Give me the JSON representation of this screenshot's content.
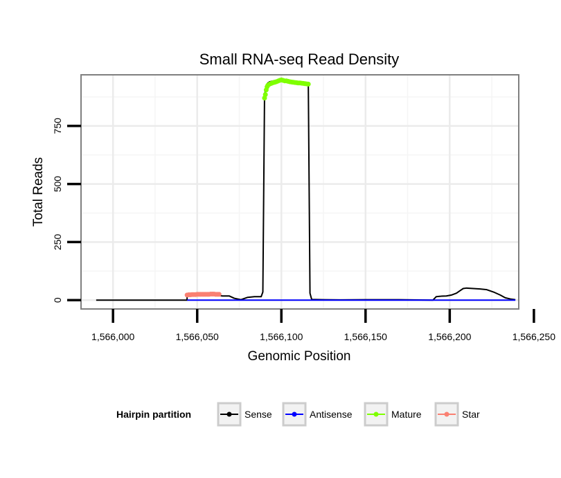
{
  "chart_data": {
    "type": "line",
    "title": "Small RNA-seq Read Density",
    "xlabel": "Genomic Position",
    "ylabel": "Total Reads",
    "xlim": [
      1565981,
      1566241
    ],
    "ylim": [
      -38,
      970
    ],
    "x_ticks": [
      1566000,
      1566050,
      1566100,
      1566150,
      1566200,
      1566250
    ],
    "x_tick_labels": [
      "1,566,000",
      "1,566,050",
      "1,566,100",
      "1,566,150",
      "1,566,200",
      "1,566,250"
    ],
    "y_ticks": [
      0,
      250,
      500,
      750
    ],
    "y_tick_labels": [
      "0",
      "250",
      "500",
      "750"
    ],
    "grid": true,
    "legend": {
      "title": "Hairpin partition",
      "position": "bottom",
      "entries": [
        {
          "name": "Sense",
          "color": "#000000"
        },
        {
          "name": "Antisense",
          "color": "#0000ff"
        },
        {
          "name": "Mature",
          "color": "#7fff00"
        },
        {
          "name": "Star",
          "color": "#fa8072"
        }
      ]
    },
    "series": [
      {
        "name": "Sense",
        "color": "#000000",
        "style": "line",
        "x": [
          1565990,
          1566044,
          1566044,
          1566063,
          1566065,
          1566069,
          1566072,
          1566076,
          1566080,
          1566084,
          1566088,
          1566089,
          1566090,
          1566091,
          1566092,
          1566093,
          1566096,
          1566100,
          1566104,
          1566108,
          1566112,
          1566115,
          1566116,
          1566117,
          1566118,
          1566125,
          1566135,
          1566150,
          1566170,
          1566190,
          1566192,
          1566195,
          1566198,
          1566201,
          1566204,
          1566206,
          1566208,
          1566210,
          1566214,
          1566218,
          1566222,
          1566226,
          1566230,
          1566233,
          1566236,
          1566239
        ],
        "y": [
          0,
          0,
          20,
          20,
          18,
          18,
          8,
          2,
          12,
          15,
          15,
          35,
          880,
          925,
          935,
          940,
          945,
          948,
          943,
          937,
          935,
          930,
          930,
          30,
          3,
          2,
          1,
          2,
          2,
          0,
          15,
          17,
          18,
          22,
          30,
          40,
          50,
          52,
          50,
          48,
          45,
          35,
          22,
          10,
          5,
          2
        ]
      },
      {
        "name": "Antisense",
        "color": "#0000ff",
        "style": "line",
        "x": [
          1566044,
          1566239
        ],
        "y": [
          0,
          0
        ]
      },
      {
        "name": "Mature",
        "color": "#7fff00",
        "style": "points",
        "x": [
          1566090,
          1566090.5,
          1566091,
          1566091.5,
          1566092,
          1566093,
          1566094,
          1566095,
          1566096,
          1566097,
          1566098,
          1566099,
          1566100,
          1566101,
          1566102,
          1566103,
          1566104,
          1566105,
          1566106,
          1566107,
          1566108,
          1566109,
          1566110,
          1566111,
          1566112,
          1566113,
          1566114,
          1566115,
          1566116
        ],
        "y": [
          870,
          885,
          905,
          918,
          925,
          930,
          933,
          936,
          938,
          940,
          943,
          946,
          948,
          946,
          944,
          944,
          942,
          940,
          939,
          938,
          937,
          936,
          935,
          935,
          934,
          933,
          932,
          931,
          930
        ]
      },
      {
        "name": "Star",
        "color": "#fa8072",
        "style": "points",
        "x": [
          1566044,
          1566045,
          1566046,
          1566047,
          1566048,
          1566049,
          1566050,
          1566051,
          1566052,
          1566053,
          1566054,
          1566055,
          1566056,
          1566057,
          1566058,
          1566059,
          1566060,
          1566061,
          1566062,
          1566063
        ],
        "y": [
          22,
          23,
          23,
          24,
          24,
          24,
          25,
          25,
          25,
          25,
          25,
          25,
          25,
          25,
          26,
          26,
          26,
          25,
          25,
          25
        ]
      }
    ]
  }
}
